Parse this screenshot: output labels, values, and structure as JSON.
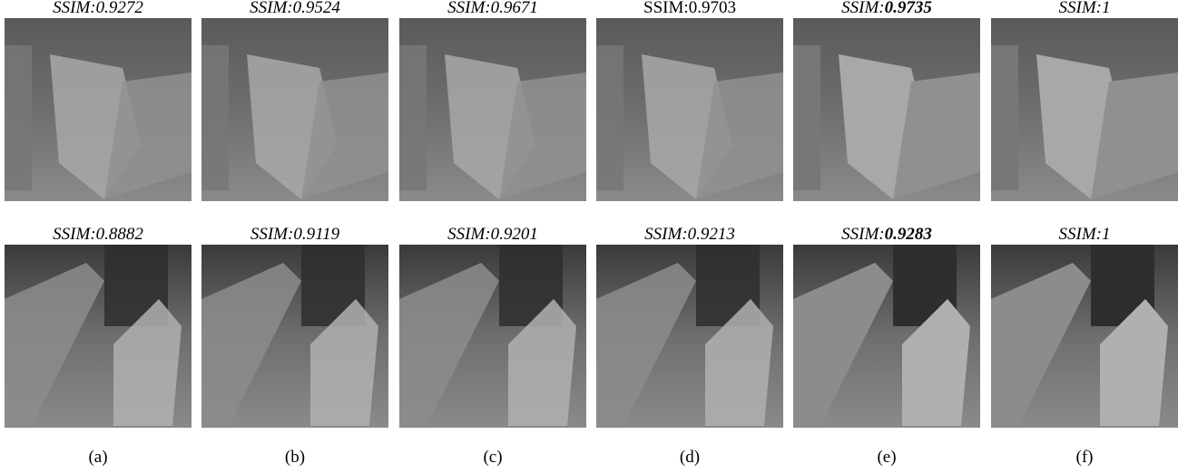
{
  "figure": {
    "rows": [
      {
        "cells": [
          {
            "metric": "SSIM:",
            "score": "0.9272",
            "style": "italic",
            "bold_score": false
          },
          {
            "metric": "SSIM:",
            "score": "0.9524",
            "style": "italic",
            "bold_score": false
          },
          {
            "metric": "SSIM:",
            "score": "0.9671",
            "style": "italic",
            "bold_score": false
          },
          {
            "metric": "SSIM:",
            "score": "0.9703",
            "style": "plain",
            "bold_score": false
          },
          {
            "metric": "SSIM:",
            "score": "0.9735",
            "style": "italic",
            "bold_score": true
          },
          {
            "metric": "SSIM:",
            "score": "1",
            "style": "italic",
            "bold_score": false
          }
        ]
      },
      {
        "cells": [
          {
            "metric": "SSIM:",
            "score": "0.8882",
            "style": "italic",
            "bold_score": false
          },
          {
            "metric": "SSIM:",
            "score": "0.9119",
            "style": "italic",
            "bold_score": false
          },
          {
            "metric": "SSIM:",
            "score": "0.9201",
            "style": "italic",
            "bold_score": false
          },
          {
            "metric": "SSIM:",
            "score": "0.9213",
            "style": "italic",
            "bold_score": false
          },
          {
            "metric": "SSIM:",
            "score": "0.9283",
            "style": "italic",
            "bold_score": true
          },
          {
            "metric": "SSIM:",
            "score": "1",
            "style": "italic",
            "bold_score": false
          }
        ]
      }
    ],
    "captions": [
      "(a)",
      "(b)",
      "(c)",
      "(d)",
      "(e)",
      "(f)"
    ]
  }
}
